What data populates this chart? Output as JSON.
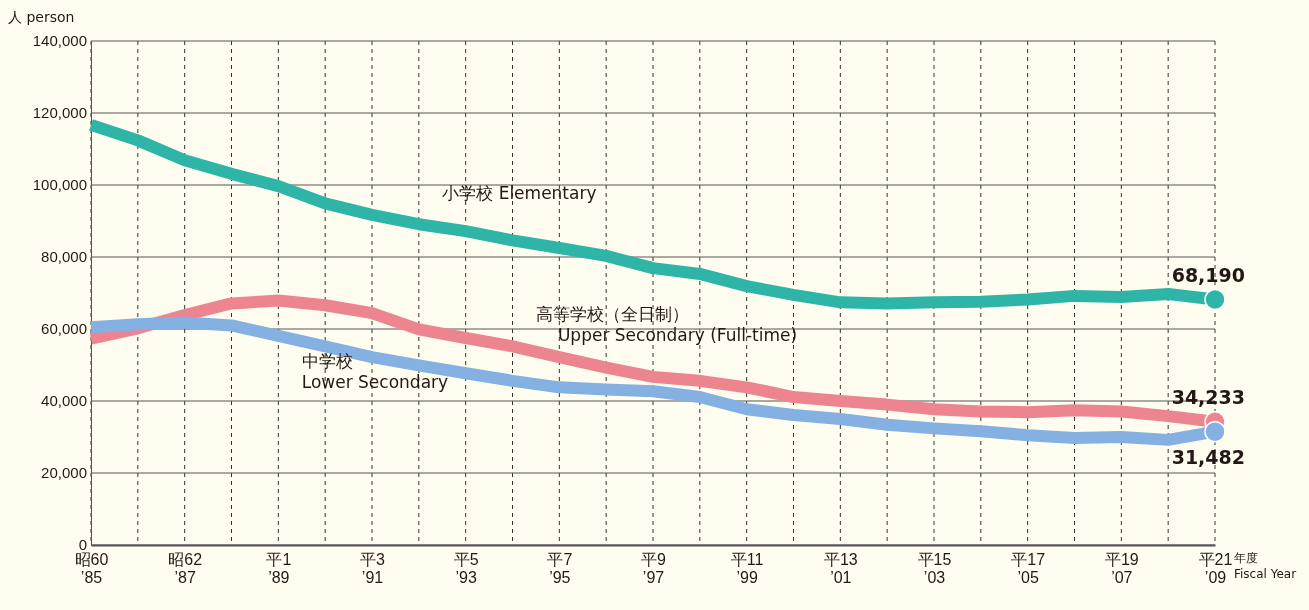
{
  "chart_data": {
    "type": "line",
    "ylabel": "人 person",
    "xlabel": "年度\nFiscal Year",
    "categories": [
      "昭60\n’85",
      null,
      "昭62\n’87",
      null,
      "平1\n’89",
      null,
      "平3\n’91",
      null,
      "平5\n’93",
      null,
      "平7\n’95",
      null,
      "平9\n’97",
      null,
      "平11\n’99",
      null,
      "平13\n’01",
      null,
      "平15\n’03",
      null,
      "平17\n’05",
      null,
      "平19\n’07",
      null,
      "平21\n’09"
    ],
    "ylim": [
      0,
      140000
    ],
    "yticks": [
      {
        "value": 0,
        "label": "0"
      },
      {
        "value": 20000,
        "label": "20,000"
      },
      {
        "value": 40000,
        "label": "40,000"
      },
      {
        "value": 60000,
        "label": "60,000"
      },
      {
        "value": 80000,
        "label": "80,000"
      },
      {
        "value": 100000,
        "label": "100,000"
      },
      {
        "value": 120000,
        "label": "120,000"
      },
      {
        "value": 140000,
        "label": "140,000"
      }
    ],
    "grid": true,
    "series": [
      {
        "name": "小学校 Elementary",
        "color": "#2fb5a8",
        "values": [
          116700,
          112400,
          106900,
          103100,
          99700,
          94900,
          91700,
          89100,
          87200,
          84600,
          82500,
          80300,
          76900,
          75300,
          71900,
          69500,
          67400,
          67100,
          67400,
          67600,
          68200,
          69200,
          68900,
          69700,
          68190
        ],
        "value_labels": [
          null,
          null,
          null,
          null,
          null,
          null,
          null,
          null,
          null,
          null,
          null,
          null,
          null,
          null,
          null,
          null,
          null,
          null,
          null,
          null,
          null,
          null,
          null,
          null,
          "68,190"
        ]
      },
      {
        "name": "高等学校（全日制）\nUpper Secondary (Full-time)",
        "color": "#ec8590",
        "values": [
          57300,
          60200,
          63900,
          67100,
          67900,
          66600,
          64400,
          59900,
          57500,
          55200,
          52200,
          49300,
          46700,
          45600,
          43800,
          41100,
          40000,
          39000,
          37700,
          37100,
          36900,
          37400,
          37100,
          35800,
          34233
        ],
        "value_labels": [
          null,
          null,
          null,
          null,
          null,
          null,
          null,
          null,
          null,
          null,
          null,
          null,
          null,
          null,
          null,
          null,
          null,
          null,
          null,
          null,
          null,
          null,
          null,
          null,
          "34,233"
        ]
      },
      {
        "name": "中学校\nLower Secondary",
        "color": "#84b0e2",
        "values": [
          60500,
          61300,
          61800,
          61000,
          58100,
          55200,
          52200,
          49900,
          47700,
          45600,
          43800,
          43200,
          42700,
          41100,
          37700,
          36100,
          35000,
          33400,
          32400,
          31600,
          30500,
          29700,
          30000,
          29200,
          31482
        ],
        "value_labels": [
          null,
          null,
          null,
          null,
          null,
          null,
          null,
          null,
          null,
          null,
          null,
          null,
          null,
          null,
          null,
          null,
          null,
          null,
          null,
          null,
          null,
          null,
          null,
          null,
          "31,482"
        ]
      }
    ]
  }
}
